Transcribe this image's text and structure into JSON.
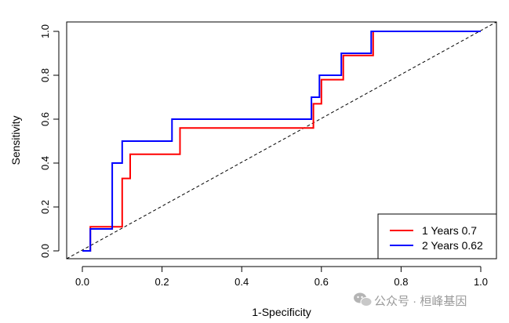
{
  "chart_data": {
    "type": "line",
    "title": "",
    "xlabel": "1-Specificity",
    "ylabel": "Sensitivity",
    "xlim": [
      0,
      1
    ],
    "ylim": [
      0,
      1
    ],
    "x_ticks": [
      0.0,
      0.2,
      0.4,
      0.6,
      0.8,
      1.0
    ],
    "x_tick_labels": [
      "0.0",
      "0.2",
      "0.4",
      "0.6",
      "0.8",
      "1.0"
    ],
    "y_ticks": [
      0.0,
      0.2,
      0.4,
      0.6,
      0.8,
      1.0
    ],
    "y_tick_labels": [
      "0.0",
      "0.2",
      "0.4",
      "0.6",
      "0.8",
      "1.0"
    ],
    "grid": false,
    "legend_position": "bottom-right",
    "reference_line": {
      "x": [
        0,
        1
      ],
      "y": [
        0,
        1
      ],
      "style": "dashed",
      "color": "#000000"
    },
    "series": [
      {
        "name": "1 Years 0.7",
        "color": "#ff0000",
        "x": [
          0.0,
          0.02,
          0.02,
          0.1,
          0.1,
          0.12,
          0.12,
          0.245,
          0.245,
          0.58,
          0.58,
          0.6,
          0.6,
          0.655,
          0.655,
          0.73,
          0.73,
          1.0
        ],
        "y": [
          0.0,
          0.0,
          0.11,
          0.11,
          0.33,
          0.33,
          0.44,
          0.44,
          0.56,
          0.56,
          0.67,
          0.67,
          0.78,
          0.78,
          0.89,
          0.89,
          1.0,
          1.0
        ]
      },
      {
        "name": "2 Years 0.62",
        "color": "#0000ff",
        "x": [
          0.0,
          0.02,
          0.02,
          0.075,
          0.075,
          0.1,
          0.1,
          0.225,
          0.225,
          0.575,
          0.575,
          0.595,
          0.595,
          0.65,
          0.65,
          0.725,
          0.725,
          1.0
        ],
        "y": [
          0.0,
          0.0,
          0.1,
          0.1,
          0.4,
          0.4,
          0.5,
          0.5,
          0.6,
          0.6,
          0.7,
          0.7,
          0.8,
          0.8,
          0.9,
          0.9,
          1.0,
          1.0
        ]
      }
    ]
  },
  "watermark": {
    "text": "公众号 · 桓峰基因",
    "icon": "wechat-icon"
  }
}
